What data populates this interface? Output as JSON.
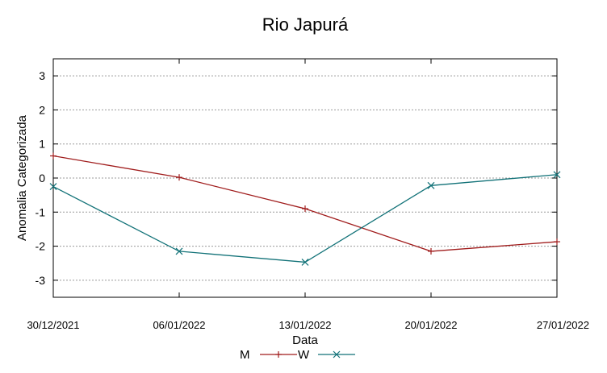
{
  "chart_data": {
    "type": "line",
    "title": "Rio Japurá",
    "xlabel": "Data",
    "ylabel": "Anomalia Categorizada",
    "categories": [
      "30/12/2021",
      "06/01/2022",
      "13/01/2022",
      "20/01/2022",
      "27/01/2022"
    ],
    "ylim": [
      -3.5,
      3.5
    ],
    "yticks": [
      "3",
      "2",
      "1",
      "0",
      "-1",
      "-2",
      "-3"
    ],
    "ytick_values": [
      3,
      2,
      1,
      0,
      -1,
      -2,
      -3
    ],
    "grid": "horizontal dashed",
    "legend_placement": "bottom",
    "series": [
      {
        "name": "M",
        "color": "#a01c1c",
        "marker": "plus",
        "values": [
          0.65,
          0.02,
          -0.9,
          -2.15,
          -1.87
        ]
      },
      {
        "name": "W",
        "color": "#127278",
        "marker": "cross",
        "values": [
          -0.25,
          -2.15,
          -2.47,
          -0.22,
          0.1
        ]
      }
    ]
  }
}
